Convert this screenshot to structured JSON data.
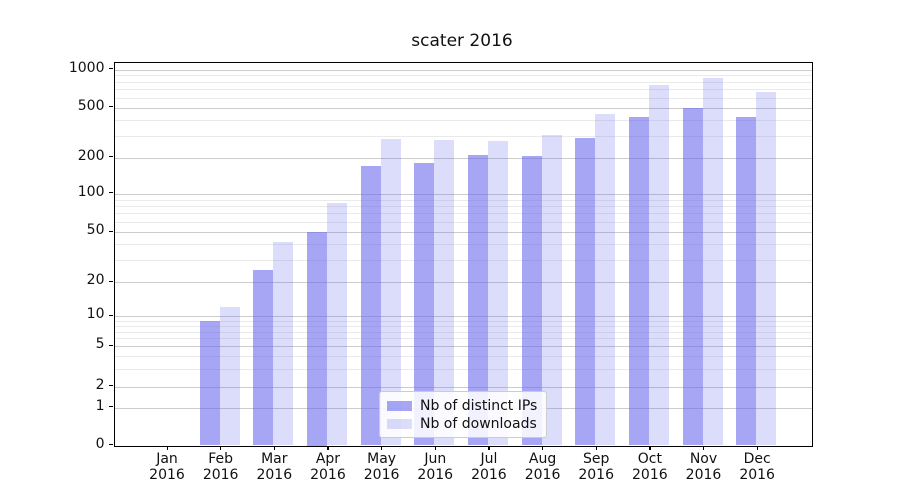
{
  "title": "scater 2016",
  "legend": {
    "items": [
      {
        "label": "Nb of distinct IPs",
        "swatch": "dark"
      },
      {
        "label": "Nb of downloads",
        "swatch": "light"
      }
    ]
  },
  "colors": {
    "bar_base": "#6666ee",
    "bar_dark_alpha": 0.58,
    "bar_light_alpha": 0.23,
    "grid_major": "#cccccc",
    "grid_minor": "#eaeaea",
    "axis": "#000000",
    "text": "#111111"
  },
  "chart_data": {
    "type": "bar",
    "title": "scater 2016",
    "xlabel": "",
    "ylabel": "",
    "yscale": "symlog",
    "grid": true,
    "legend_position": "lower center",
    "categories": [
      "Jan 2016",
      "Feb 2016",
      "Mar 2016",
      "Apr 2016",
      "May 2016",
      "Jun 2016",
      "Jul 2016",
      "Aug 2016",
      "Sep 2016",
      "Oct 2016",
      "Nov 2016",
      "Dec 2016"
    ],
    "x_tick_line1": [
      "Jan",
      "Feb",
      "Mar",
      "Apr",
      "May",
      "Jun",
      "Jul",
      "Aug",
      "Sep",
      "Oct",
      "Nov",
      "Dec"
    ],
    "x_tick_line2": "2016",
    "y_major_ticks": [
      0,
      1,
      2,
      5,
      10,
      20,
      50,
      100,
      200,
      500,
      1000
    ],
    "y_minor_ticks": [
      3,
      4,
      6,
      7,
      8,
      9,
      30,
      40,
      60,
      70,
      80,
      90,
      300,
      400,
      600,
      700,
      800,
      900
    ],
    "ylim": [
      0,
      1150
    ],
    "series": [
      {
        "name": "Nb of distinct IPs",
        "values": [
          0,
          9,
          25,
          50,
          170,
          180,
          210,
          205,
          285,
          425,
          500,
          420
        ]
      },
      {
        "name": "Nb of downloads",
        "values": [
          0,
          12,
          42,
          85,
          280,
          275,
          274,
          305,
          445,
          760,
          860,
          670
        ]
      }
    ]
  }
}
